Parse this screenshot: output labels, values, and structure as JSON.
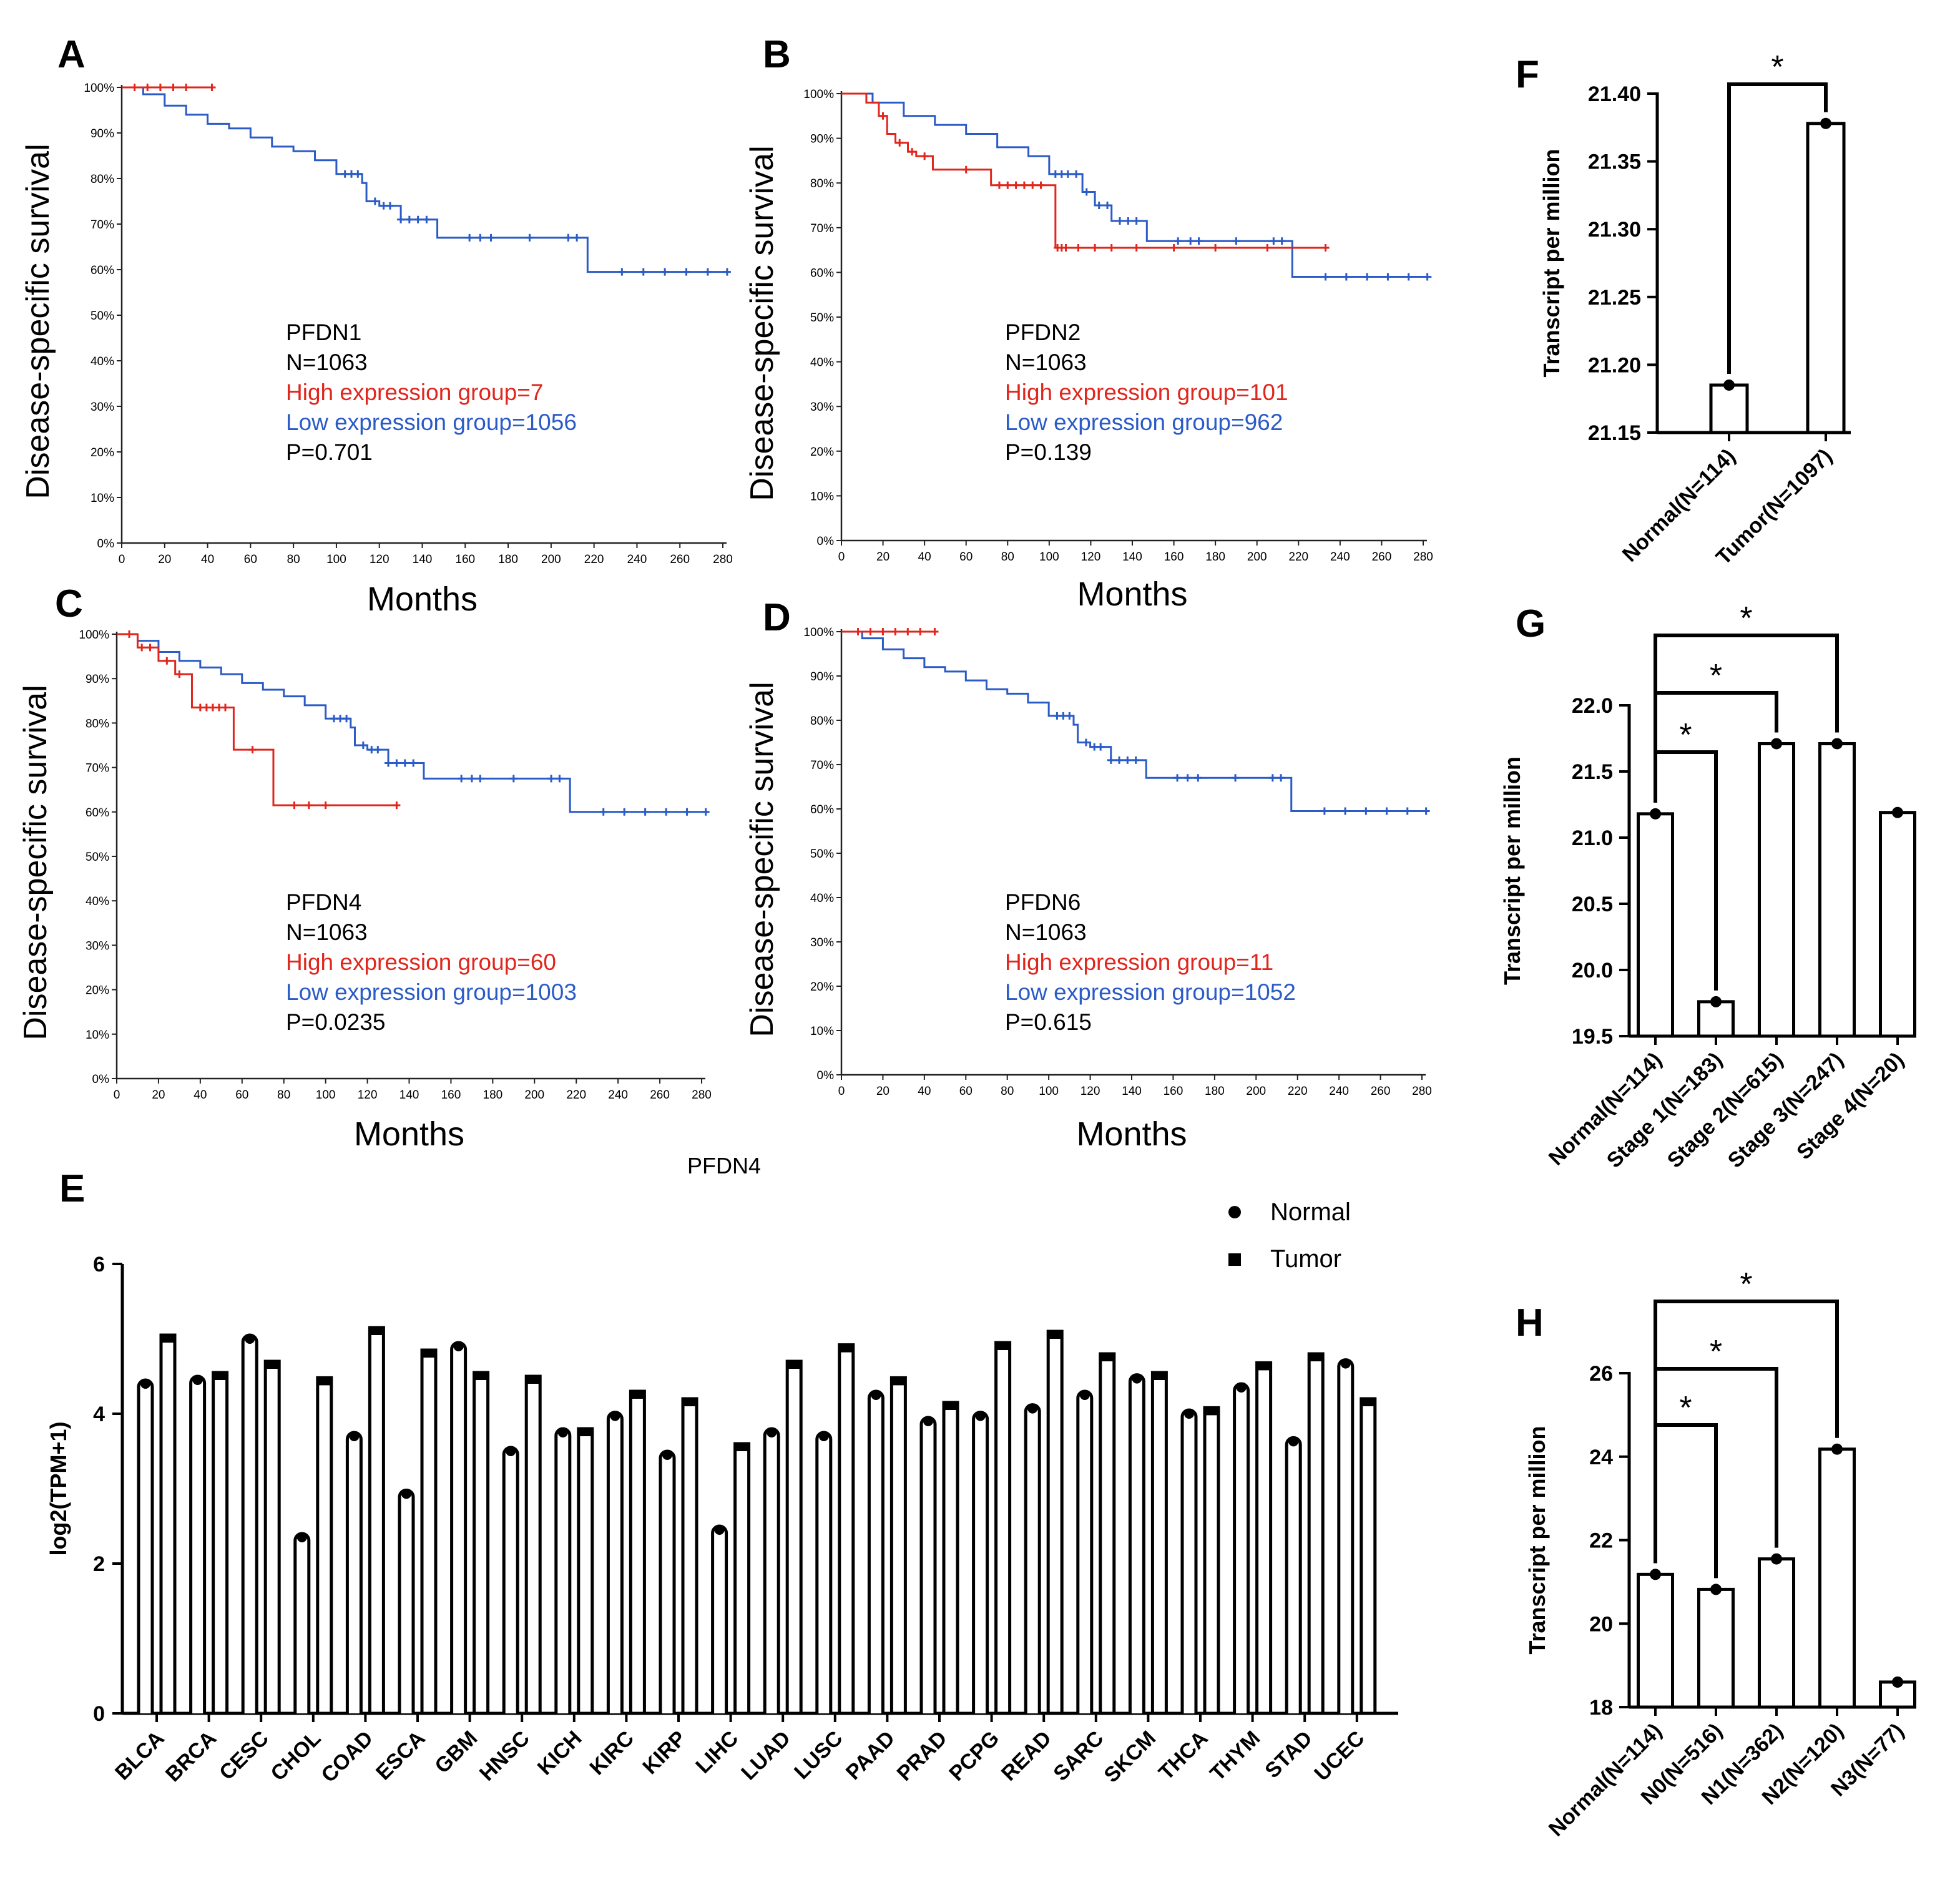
{
  "colors": {
    "high": "#e0261d",
    "low": "#2a5bc7",
    "ink": "#000000",
    "axis": "#222222"
  },
  "chart_data": [
    {
      "panel": "A",
      "type": "line",
      "subtype": "kaplan-meier",
      "xlabel": "Months",
      "ylabel": "Disease-specific survival",
      "xlim": [
        0,
        280
      ],
      "ylim": [
        0,
        100
      ],
      "xticks": [
        "0",
        "20",
        "40",
        "60",
        "80",
        "100",
        "120",
        "140",
        "160",
        "180",
        "200",
        "220",
        "240",
        "260",
        "280"
      ],
      "yticks": [
        "0%",
        "10%",
        "20%",
        "30%",
        "40%",
        "50%",
        "60%",
        "70%",
        "80%",
        "90%",
        "100%"
      ],
      "legend": {
        "gene": "PFDN1",
        "n": "N=1063",
        "high": "High expression group=7",
        "low": "Low expression group=1056",
        "p": "P=0.701"
      },
      "series": [
        {
          "name": "High expression group",
          "color": "#e0261d",
          "x": [
            0,
            42
          ],
          "y": [
            100,
            100
          ],
          "censor": [
            6,
            12,
            18,
            24,
            30,
            42
          ]
        },
        {
          "name": "Low expression group",
          "color": "#2a5bc7",
          "x": [
            0,
            10,
            20,
            30,
            40,
            50,
            60,
            70,
            80,
            90,
            100,
            112,
            114,
            120,
            130,
            147,
            160,
            180,
            215,
            217,
            283
          ],
          "y": [
            100,
            98.5,
            96,
            94,
            92,
            91,
            89,
            87,
            86,
            84,
            81,
            79,
            75,
            74,
            71,
            67,
            67,
            67,
            67,
            59.5,
            59.5
          ],
          "censor": [
            104,
            107,
            110,
            118,
            122,
            125,
            130,
            134,
            138,
            142,
            162,
            167,
            172,
            190,
            208,
            212,
            233,
            243,
            253,
            263,
            273,
            282
          ]
        }
      ]
    },
    {
      "panel": "B",
      "type": "line",
      "subtype": "kaplan-meier",
      "xlabel": "Months",
      "ylabel": "Disease-specific survival",
      "xlim": [
        0,
        280
      ],
      "ylim": [
        0,
        100
      ],
      "xticks": [
        "0",
        "20",
        "40",
        "60",
        "80",
        "100",
        "120",
        "140",
        "160",
        "180",
        "200",
        "220",
        "240",
        "260",
        "280"
      ],
      "yticks": [
        "0%",
        "10%",
        "20%",
        "30%",
        "40%",
        "50%",
        "60%",
        "70%",
        "80%",
        "90%",
        "100%"
      ],
      "legend": {
        "gene": "PFDN2",
        "n": "N=1063",
        "high": "High expression group=101",
        "low": "Low expression group=962",
        "p": "P=0.139"
      },
      "series": [
        {
          "name": "High expression group",
          "color": "#e0261d",
          "x": [
            0,
            12,
            18,
            22,
            26,
            32,
            36,
            44,
            56,
            72,
            100,
            103,
            233
          ],
          "y": [
            100,
            98,
            95,
            91,
            89,
            87,
            86,
            83,
            83,
            79.5,
            79.5,
            65.5,
            65.5
          ],
          "censor": [
            20,
            28,
            34,
            40,
            60,
            76,
            80,
            84,
            88,
            92,
            96,
            104,
            106,
            108,
            114,
            122,
            130,
            142,
            160,
            180,
            205,
            233
          ]
        },
        {
          "name": "Low expression group",
          "color": "#2a5bc7",
          "x": [
            0,
            15,
            30,
            45,
            60,
            75,
            90,
            100,
            112,
            116,
            122,
            130,
            147,
            215,
            217,
            284
          ],
          "y": [
            100,
            98,
            95,
            93,
            91,
            88,
            86,
            82,
            82,
            78,
            75,
            71.5,
            67,
            67,
            59,
            59
          ],
          "censor": [
            103,
            106,
            109,
            113,
            118,
            124,
            128,
            134,
            138,
            142,
            162,
            168,
            172,
            190,
            208,
            212,
            233,
            243,
            253,
            263,
            273,
            282
          ]
        }
      ]
    },
    {
      "panel": "C",
      "type": "line",
      "subtype": "kaplan-meier",
      "xlabel": "Months",
      "ylabel": "Disease-specific survival",
      "xlim": [
        0,
        280
      ],
      "ylim": [
        0,
        100
      ],
      "xticks": [
        "0",
        "20",
        "40",
        "60",
        "80",
        "100",
        "120",
        "140",
        "160",
        "180",
        "200",
        "220",
        "240",
        "260",
        "280"
      ],
      "yticks": [
        "0%",
        "10%",
        "20%",
        "30%",
        "40%",
        "50%",
        "60%",
        "70%",
        "80%",
        "90%",
        "100%"
      ],
      "legend": {
        "gene": "PFDN4",
        "n": "N=1063",
        "high": "High expression group=60",
        "low": "Low expression group=1003",
        "p": "P=0.0235"
      },
      "series": [
        {
          "name": "High expression group",
          "color": "#e0261d",
          "x": [
            0,
            10,
            20,
            28,
            36,
            56,
            75,
            134
          ],
          "y": [
            100,
            97,
            94,
            91,
            83.5,
            74,
            61.5,
            61.5
          ],
          "censor": [
            6,
            12,
            16,
            24,
            30,
            40,
            43,
            46,
            49,
            52,
            65,
            85,
            92,
            100,
            134
          ]
        },
        {
          "name": "Low expression group",
          "color": "#2a5bc7",
          "x": [
            0,
            10,
            20,
            30,
            40,
            50,
            60,
            70,
            80,
            90,
            100,
            112,
            114,
            120,
            130,
            147,
            160,
            180,
            215,
            217,
            283
          ],
          "y": [
            100,
            98.5,
            96,
            94,
            92.5,
            91,
            89,
            87.5,
            86,
            84,
            81,
            79,
            75,
            74,
            71,
            67.5,
            67.5,
            67.5,
            67.5,
            60,
            60
          ],
          "censor": [
            104,
            107,
            110,
            118,
            122,
            125,
            130,
            134,
            138,
            142,
            165,
            170,
            174,
            190,
            208,
            212,
            233,
            243,
            253,
            263,
            273,
            282
          ]
        }
      ]
    },
    {
      "panel": "D",
      "type": "line",
      "subtype": "kaplan-meier",
      "xlabel": "Months",
      "ylabel": "Disease-specific survival",
      "xlim": [
        0,
        280
      ],
      "ylim": [
        0,
        100
      ],
      "xticks": [
        "0",
        "20",
        "40",
        "60",
        "80",
        "100",
        "120",
        "140",
        "160",
        "180",
        "200",
        "220",
        "240",
        "260",
        "280"
      ],
      "yticks": [
        "0%",
        "10%",
        "20%",
        "30%",
        "40%",
        "50%",
        "60%",
        "70%",
        "80%",
        "90%",
        "100%"
      ],
      "legend": {
        "gene": "PFDN6",
        "n": "N=1063",
        "high": "High expression group=11",
        "low": "Low expression group=1052",
        "p": "P=0.615"
      },
      "series": [
        {
          "name": "High expression group",
          "color": "#e0261d",
          "x": [
            0,
            45
          ],
          "y": [
            100,
            100
          ],
          "censor": [
            8,
            14,
            20,
            26,
            32,
            38,
            45
          ]
        },
        {
          "name": "Low expression group",
          "color": "#2a5bc7",
          "x": [
            0,
            10,
            20,
            30,
            40,
            50,
            60,
            70,
            80,
            90,
            100,
            112,
            114,
            120,
            130,
            147,
            160,
            180,
            215,
            217,
            283
          ],
          "y": [
            100,
            98.5,
            96,
            94,
            92,
            91,
            89,
            87,
            86,
            84,
            81,
            79,
            75,
            74,
            71,
            67,
            67,
            67,
            67,
            59.5,
            59.5
          ],
          "censor": [
            104,
            107,
            110,
            118,
            122,
            125,
            130,
            134,
            138,
            142,
            162,
            167,
            172,
            190,
            208,
            212,
            233,
            243,
            253,
            263,
            273,
            282
          ]
        }
      ]
    },
    {
      "panel": "E",
      "type": "bar",
      "title": "PFDN4",
      "ylabel": "log2(TPM+1)",
      "ylim": [
        0,
        6
      ],
      "yticks": [
        "0",
        "2",
        "4",
        "6"
      ],
      "legend": [
        "Normal",
        "Tumor"
      ],
      "categories": [
        "BLCA",
        "BRCA",
        "CESC",
        "CHOL",
        "COAD",
        "ESCA",
        "GBM",
        "HNSC",
        "KICH",
        "KIRC",
        "KIRP",
        "LIHC",
        "LUAD",
        "LUSC",
        "PAAD",
        "PRAD",
        "PCPG",
        "READ",
        "SARC",
        "SKCM",
        "THCA",
        "THYM",
        "STAD",
        "UCEC"
      ],
      "series": [
        {
          "name": "Normal",
          "values": [
            4.45,
            4.5,
            5.05,
            2.4,
            3.75,
            2.98,
            4.95,
            3.55,
            3.8,
            4.02,
            3.5,
            2.5,
            3.8,
            3.75,
            4.3,
            3.95,
            4.02,
            4.12,
            4.3,
            4.52,
            4.05,
            4.4,
            3.68,
            4.72
          ]
        },
        {
          "name": "Tumor",
          "values": [
            5.05,
            4.55,
            4.7,
            4.48,
            5.15,
            4.85,
            4.55,
            4.5,
            3.8,
            4.3,
            4.2,
            3.6,
            4.7,
            4.92,
            4.48,
            4.15,
            4.95,
            5.1,
            4.8,
            4.55,
            4.08,
            4.68,
            4.8,
            4.2
          ]
        }
      ]
    },
    {
      "panel": "F",
      "type": "bar",
      "ylabel": "Transcript per million",
      "ylim": [
        21.15,
        21.4
      ],
      "yticks": [
        "21.15",
        "21.20",
        "21.25",
        "21.30",
        "21.35",
        "21.40"
      ],
      "categories": [
        "Normal(N=114)",
        "Tumor(N=1097)"
      ],
      "values": [
        21.185,
        21.378
      ],
      "significance": [
        {
          "from": 0,
          "to": 1,
          "label": "*"
        }
      ]
    },
    {
      "panel": "G",
      "type": "bar",
      "ylabel": "Transcript per million",
      "ylim": [
        19.5,
        22.0
      ],
      "yticks": [
        "19.5",
        "20.0",
        "20.5",
        "21.0",
        "21.5",
        "22.0"
      ],
      "categories": [
        "Normal(N=114)",
        "Stage 1(N=183)",
        "Stage 2(N=615)",
        "Stage 3(N=247)",
        "Stage 4(N=20)"
      ],
      "values": [
        21.18,
        19.76,
        21.71,
        21.71,
        21.19
      ],
      "significance": [
        {
          "from": 0,
          "to": 1,
          "label": "*"
        },
        {
          "from": 0,
          "to": 2,
          "label": "*"
        },
        {
          "from": 0,
          "to": 3,
          "label": "*"
        }
      ]
    },
    {
      "panel": "H",
      "type": "bar",
      "ylabel": "Transcript per million",
      "ylim": [
        18,
        26
      ],
      "yticks": [
        "18",
        "20",
        "22",
        "24",
        "26"
      ],
      "categories": [
        "Normal(N=114)",
        "N0(N=516)",
        "N1(N=362)",
        "N2(N=120)",
        "N3(N=77)"
      ],
      "values": [
        21.18,
        20.82,
        21.55,
        24.18,
        18.6
      ],
      "significance": [
        {
          "from": 0,
          "to": 1,
          "label": "*"
        },
        {
          "from": 0,
          "to": 2,
          "label": "*"
        },
        {
          "from": 0,
          "to": 3,
          "label": "*"
        }
      ]
    }
  ]
}
